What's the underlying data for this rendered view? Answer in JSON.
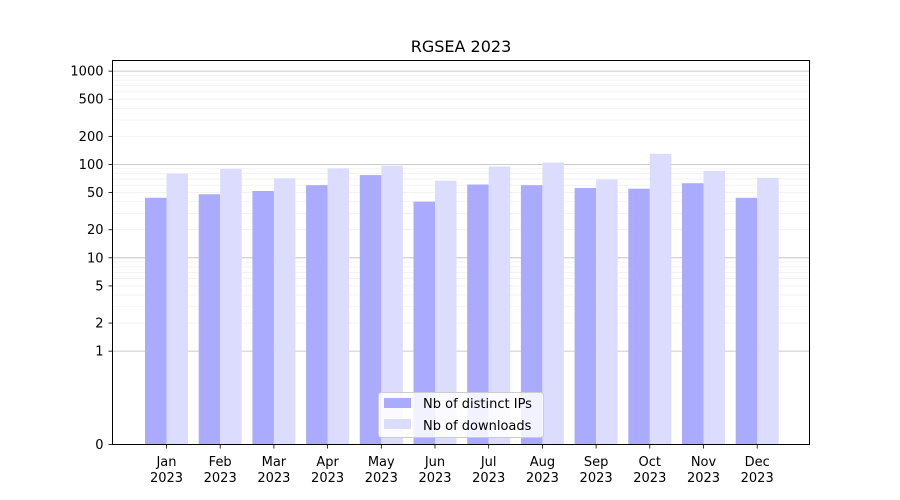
{
  "chart_data": {
    "type": "bar",
    "title": "RGSEA 2023",
    "xlabel": "",
    "ylabel": "",
    "y_scale": "symlog",
    "ylim": [
      0,
      1300
    ],
    "y_ticks": [
      0,
      1,
      2,
      5,
      10,
      20,
      50,
      100,
      200,
      500,
      1000
    ],
    "grid": "horizontal",
    "legend_position": "bottom-center",
    "categories": [
      [
        "Jan",
        "2023"
      ],
      [
        "Feb",
        "2023"
      ],
      [
        "Mar",
        "2023"
      ],
      [
        "Apr",
        "2023"
      ],
      [
        "May",
        "2023"
      ],
      [
        "Jun",
        "2023"
      ],
      [
        "Jul",
        "2023"
      ],
      [
        "Aug",
        "2023"
      ],
      [
        "Sep",
        "2023"
      ],
      [
        "Oct",
        "2023"
      ],
      [
        "Nov",
        "2023"
      ],
      [
        "Dec",
        "2023"
      ]
    ],
    "series": [
      {
        "name": "Nb of distinct IPs",
        "color": "#aaaaff",
        "values": [
          44,
          48,
          52,
          60,
          77,
          40,
          61,
          60,
          56,
          55,
          63,
          44
        ]
      },
      {
        "name": "Nb of downloads",
        "color": "#dcdcff",
        "values": [
          80,
          90,
          71,
          91,
          97,
          67,
          95,
          105,
          69,
          130,
          85,
          72
        ]
      }
    ]
  }
}
